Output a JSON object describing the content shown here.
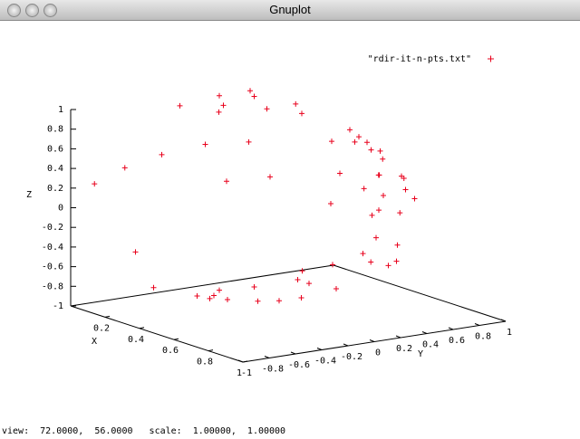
{
  "window": {
    "title": "Gnuplot"
  },
  "status": "view:  72.0000,  56.0000   scale:  1.00000,  1.00000",
  "chart_data": {
    "type": "scatter3d",
    "series": [
      {
        "name": "\"rdir-it-n-pts.txt\"",
        "color": "#e8001c",
        "x": [
          0.1,
          0.2,
          0.15,
          0.3,
          0.05,
          0.25,
          0.1,
          0.35,
          0.2,
          0.4,
          0.5,
          0.3,
          0.6,
          0.2,
          0.5,
          0.4,
          0.3,
          0.6,
          0.7,
          0.2,
          0.5,
          0.3,
          0.6,
          0.4,
          0.7,
          0.8,
          0.9,
          0.8,
          0.9,
          0.7,
          0.6,
          0.95,
          0.98,
          0.9,
          0.85,
          0.8,
          0.7,
          0.6,
          0.5,
          0.4,
          0.3,
          0.2,
          0.1,
          0.3,
          0.1,
          0.2,
          0.3,
          0.15,
          0.4,
          0.25,
          0.35,
          0.5,
          0.2,
          0.45,
          0.1,
          0.6,
          0.3,
          0.55,
          0.4
        ],
        "y": [
          0.0,
          -0.1,
          0.2,
          0.1,
          0.3,
          -0.2,
          -0.3,
          0.3,
          0.45,
          0.6,
          0.6,
          0.8,
          0.5,
          0.9,
          0.7,
          0.85,
          0.95,
          0.75,
          0.6,
          0.97,
          0.85,
          0.9,
          0.7,
          0.8,
          0.5,
          0.3,
          0.2,
          0.0,
          -0.2,
          -0.4,
          -0.6,
          0.1,
          0.0,
          0.3,
          -0.3,
          0.5,
          0.7,
          0.2,
          -0.3,
          -0.5,
          -0.7,
          -0.85,
          -0.95,
          -0.9,
          0.0,
          -0.3,
          -0.2,
          0.2,
          -0.1,
          0.4,
          -0.4,
          0.1,
          0.5,
          -0.5,
          -0.5,
          -0.2,
          0.6,
          0.3,
          0.7
        ],
        "z": [
          0.99,
          0.97,
          0.97,
          0.95,
          0.95,
          0.95,
          0.95,
          0.89,
          0.87,
          0.69,
          0.62,
          0.52,
          0.62,
          0.39,
          0.51,
          0.34,
          0.1,
          0.28,
          0.39,
          -0.1,
          -0.15,
          -0.3,
          -0.39,
          -0.45,
          -0.5,
          0.52,
          0.39,
          0.6,
          0.39,
          0.59,
          0.53,
          0.29,
          -0.2,
          -0.3,
          -0.43,
          0.33,
          0.14,
          0.77,
          0.81,
          0.77,
          0.65,
          0.49,
          0.29,
          -0.3,
          -0.99,
          -0.93,
          -0.93,
          -0.97,
          -0.91,
          -0.88,
          -0.85,
          -0.86,
          -0.84,
          -0.74,
          -0.86,
          -0.77,
          -0.74,
          -0.78,
          -0.59
        ]
      }
    ],
    "xlabel": "X",
    "ylabel": "Y",
    "zlabel": "Z",
    "xlim": [
      0,
      1
    ],
    "ylim": [
      -1,
      1
    ],
    "zlim": [
      -1,
      1
    ],
    "xticks": [
      0.2,
      0.4,
      0.6,
      0.8,
      1
    ],
    "yticks": [
      -1,
      -0.8,
      -0.6,
      -0.4,
      -0.2,
      0,
      0.2,
      0.4,
      0.6,
      0.8,
      1
    ],
    "zticks": [
      -1,
      -0.8,
      -0.6,
      -0.4,
      -0.2,
      0,
      0.2,
      0.4,
      0.6,
      0.8,
      1
    ],
    "legend": "top-right"
  }
}
